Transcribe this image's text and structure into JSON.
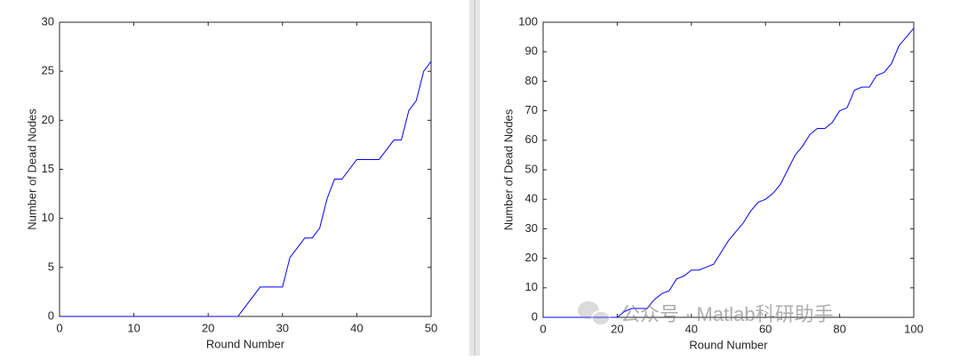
{
  "chart_data": [
    {
      "type": "line",
      "xlabel": "Round Number",
      "ylabel": "Number of Dead Nodes",
      "color": "#0000ff",
      "x": [
        0,
        1,
        2,
        3,
        4,
        5,
        6,
        7,
        8,
        9,
        10,
        11,
        12,
        13,
        14,
        15,
        16,
        17,
        18,
        19,
        20,
        21,
        22,
        23,
        24,
        25,
        26,
        27,
        28,
        29,
        30,
        31,
        32,
        33,
        34,
        35,
        36,
        37,
        38,
        39,
        40,
        41,
        42,
        43,
        44,
        45,
        46,
        47,
        48,
        49,
        50
      ],
      "values": [
        0,
        0,
        0,
        0,
        0,
        0,
        0,
        0,
        0,
        0,
        0,
        0,
        0,
        0,
        0,
        0,
        0,
        0,
        0,
        0,
        0,
        0,
        0,
        0,
        0,
        1,
        2,
        3,
        3,
        3,
        3,
        6,
        7,
        8,
        8,
        9,
        12,
        14,
        14,
        15,
        16,
        16,
        16,
        16,
        17,
        18,
        18,
        21,
        22,
        25,
        26
      ],
      "xlim": [
        0,
        50
      ],
      "xticks": [
        0,
        10,
        20,
        30,
        40,
        50
      ],
      "ylim": [
        0,
        30
      ],
      "yticks": [
        0,
        5,
        10,
        15,
        20,
        25,
        30
      ]
    },
    {
      "type": "line",
      "xlabel": "Round Number",
      "ylabel": "Number of Dead Nodes",
      "color": "#0000ff",
      "x": [
        0,
        5,
        10,
        15,
        20,
        22,
        24,
        26,
        28,
        30,
        32,
        34,
        36,
        38,
        40,
        42,
        44,
        46,
        48,
        50,
        52,
        54,
        56,
        58,
        60,
        62,
        64,
        66,
        68,
        70,
        72,
        74,
        76,
        78,
        80,
        82,
        84,
        86,
        88,
        90,
        92,
        94,
        96,
        98,
        100
      ],
      "values": [
        0,
        0,
        0,
        0,
        0,
        2,
        3,
        3,
        3,
        6,
        8,
        9,
        13,
        14,
        16,
        16,
        17,
        18,
        22,
        26,
        29,
        32,
        36,
        39,
        40,
        42,
        45,
        50,
        55,
        58,
        62,
        64,
        64,
        66,
        70,
        71,
        77,
        78,
        78,
        82,
        83,
        86,
        92,
        95,
        98
      ],
      "xlim": [
        0,
        100
      ],
      "xticks": [
        0,
        20,
        40,
        60,
        80,
        100
      ],
      "ylim": [
        0,
        100
      ],
      "yticks": [
        0,
        10,
        20,
        30,
        40,
        50,
        60,
        70,
        80,
        90,
        100
      ]
    }
  ],
  "watermark": "公众号 · Matlab科研助手"
}
